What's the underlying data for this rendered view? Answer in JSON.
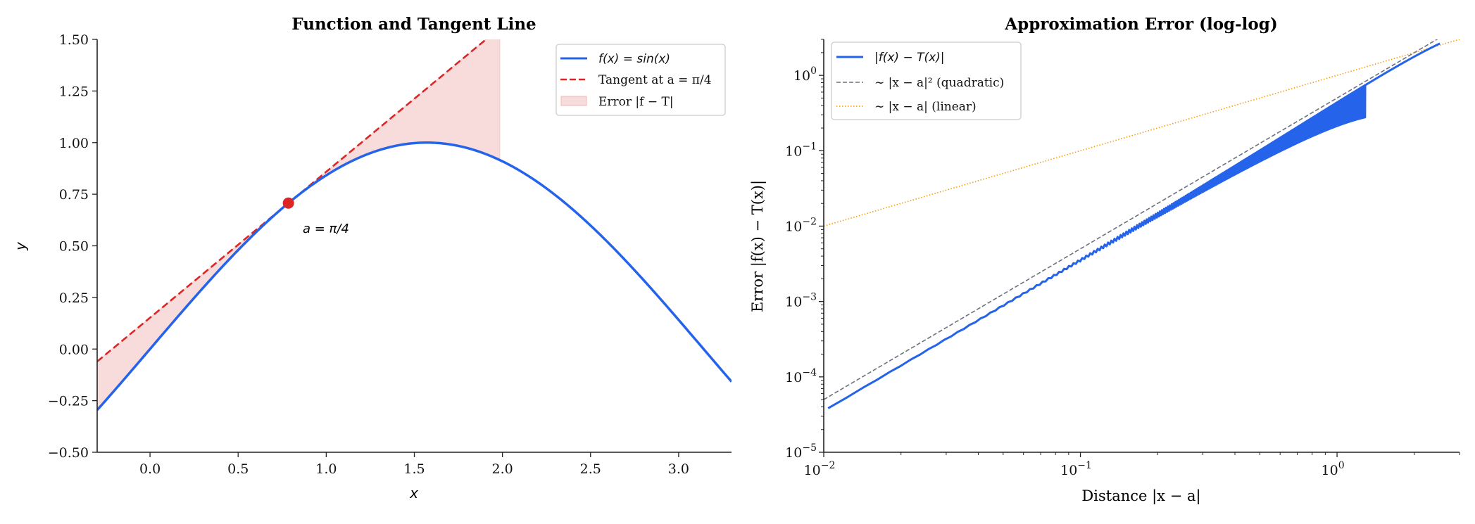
{
  "chart_data": [
    {
      "type": "line",
      "title": "Function and Tangent Line",
      "xlabel": "x",
      "ylabel": "y",
      "xlim": [
        -0.3,
        3.3
      ],
      "ylim": [
        -0.5,
        1.5
      ],
      "xticks": [
        "0.0",
        "0.5",
        "1.0",
        "1.5",
        "2.0",
        "2.5",
        "3.0"
      ],
      "yticks": [
        "−0.50",
        "−0.25",
        "0.00",
        "0.25",
        "0.50",
        "0.75",
        "1.00",
        "1.25",
        "1.50"
      ],
      "a": 0.7854,
      "point": {
        "x": 0.7854,
        "y": 0.7071,
        "label": "a = π/4"
      },
      "shaded_range": [
        -0.3,
        1.985
      ],
      "series": [
        {
          "name": "f(x) = sin(x)",
          "function": "sin(x)",
          "color": "#2563eb",
          "style": "solid"
        },
        {
          "name": "Tangent at a = π/4",
          "function": "sin(a) + cos(a)(x − a)",
          "color": "#dc2626",
          "style": "dashed"
        },
        {
          "name": "Error |f − T|",
          "kind": "fill_between",
          "color": "#f4c7c7"
        }
      ],
      "legend": "top-right",
      "grid": false
    },
    {
      "type": "line",
      "title": "Approximation Error (log-log)",
      "xlabel": "Distance |x − a|",
      "ylabel": "Error |f(x) − T(x)|",
      "xscale": "log",
      "yscale": "log",
      "xlim": [
        0.01,
        3.0
      ],
      "ylim": [
        1e-05,
        3.0
      ],
      "xticks": [
        {
          "v": 0.01,
          "base": "10",
          "exp": "−2"
        },
        {
          "v": 0.1,
          "base": "10",
          "exp": "−1"
        },
        {
          "v": 1,
          "base": "10",
          "exp": "0"
        }
      ],
      "yticks": [
        {
          "v": 1e-05,
          "base": "10",
          "exp": "−5"
        },
        {
          "v": 0.0001,
          "base": "10",
          "exp": "−4"
        },
        {
          "v": 0.001,
          "base": "10",
          "exp": "−3"
        },
        {
          "v": 0.01,
          "base": "10",
          "exp": "−2"
        },
        {
          "v": 0.1,
          "base": "10",
          "exp": "−1"
        },
        {
          "v": 1,
          "base": "10",
          "exp": "0"
        }
      ],
      "x_domain": [
        -0.5,
        3.3
      ],
      "series": [
        {
          "name": "|f(x) − T(x)|",
          "color": "#2563eb",
          "style": "solid"
        },
        {
          "name": "∼ |x − a|² (quadratic)",
          "coef": 0.5,
          "power": 2,
          "color": "#6b7280",
          "style": "dashed"
        },
        {
          "name": "∼ |x − a| (linear)",
          "coef": 1.0,
          "power": 1,
          "color": "#f59e0b",
          "style": "dotted"
        }
      ],
      "legend": "top-left",
      "grid": false
    }
  ]
}
